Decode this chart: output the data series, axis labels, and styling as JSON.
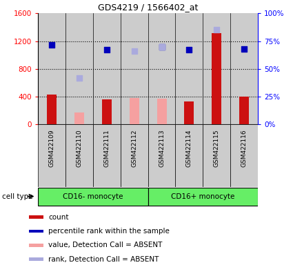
{
  "title": "GDS4219 / 1566402_at",
  "samples": [
    "GSM422109",
    "GSM422110",
    "GSM422111",
    "GSM422112",
    "GSM422113",
    "GSM422114",
    "GSM422115",
    "GSM422116"
  ],
  "count_values": [
    430,
    null,
    360,
    null,
    null,
    330,
    1310,
    400
  ],
  "count_absent_values": [
    null,
    170,
    null,
    380,
    370,
    null,
    null,
    null
  ],
  "percentile_values": [
    1150,
    null,
    1080,
    null,
    1120,
    1080,
    null,
    1090
  ],
  "percentile_absent_values": [
    null,
    670,
    null,
    1060,
    1120,
    null,
    1360,
    null
  ],
  "bar_color_present": "#cc1111",
  "bar_color_absent": "#f5a0a0",
  "dot_color_present": "#0000bb",
  "dot_color_absent": "#aaaadd",
  "ylim_left": [
    0,
    1600
  ],
  "ylim_right": [
    0,
    100
  ],
  "yticks_left": [
    0,
    400,
    800,
    1200,
    1600
  ],
  "yticks_right": [
    0,
    25,
    50,
    75,
    100
  ],
  "ytick_labels_right": [
    "0%",
    "25%",
    "50%",
    "75%",
    "100%"
  ],
  "cell_type_groups": [
    {
      "label": "CD16- monocyte",
      "start": 0,
      "end": 3
    },
    {
      "label": "CD16+ monocyte",
      "start": 4,
      "end": 7
    }
  ],
  "cell_type_label": "cell type",
  "group_color": "#66ee66",
  "sample_bg_color": "#cccccc",
  "legend_items": [
    {
      "label": "count",
      "color": "#cc1111"
    },
    {
      "label": "percentile rank within the sample",
      "color": "#0000bb"
    },
    {
      "label": "value, Detection Call = ABSENT",
      "color": "#f5a0a0"
    },
    {
      "label": "rank, Detection Call = ABSENT",
      "color": "#aaaadd"
    }
  ],
  "fig_width": 4.25,
  "fig_height": 3.84,
  "dpi": 100
}
